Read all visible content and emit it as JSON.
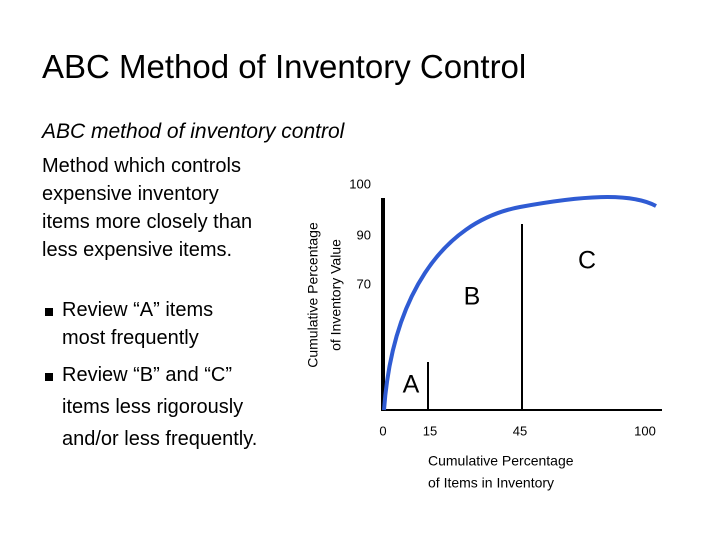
{
  "title": "ABC Method of Inventory Control",
  "subtitle": "ABC method of inventory control",
  "description": [
    "Method which controls",
    "expensive inventory",
    "items more closely than",
    "less expensive items."
  ],
  "bullets": [
    [
      "Review “A” items",
      "most frequently"
    ],
    [
      "Review “B” and “C”",
      "items less rigorously",
      "and/or less frequently."
    ]
  ],
  "chart": {
    "y_axis_label": [
      "Cumulative Percentage",
      "of Inventory Value"
    ],
    "x_axis_label": [
      "Cumulative Percentage",
      "of Items in Inventory"
    ],
    "y_tick_labels": [
      100,
      90,
      70
    ],
    "x_tick_labels": [
      0,
      15,
      45,
      100
    ],
    "regions": [
      "A",
      "B",
      "C"
    ]
  }
}
